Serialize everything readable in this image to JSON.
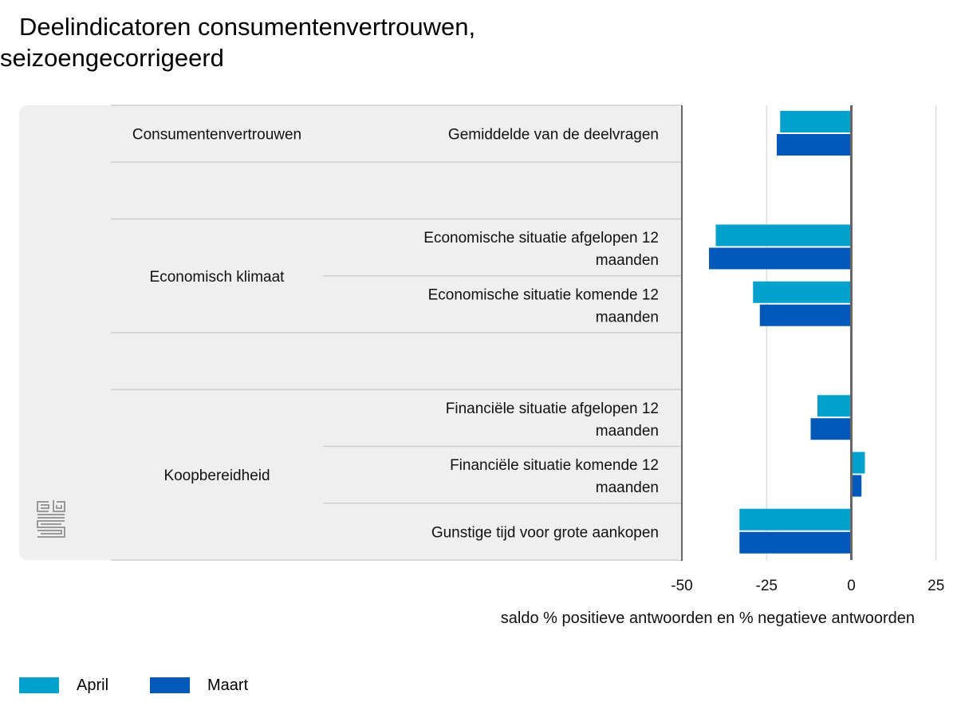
{
  "title": {
    "line1": "Deelindicatoren consumentenvertrouwen,",
    "line2": "seizoengecorrigeerd"
  },
  "logo_icon": "cbs-logo-icon",
  "colors": {
    "april": "#00a1cd",
    "maart": "#0058b8",
    "panel": "#efefef",
    "grid": "#cfcfcf",
    "zero": "#666666"
  },
  "chart_data": {
    "type": "bar",
    "orientation": "horizontal",
    "title": "Deelindicatoren consumentenvertrouwen, seizoengecorrigeerd",
    "xlabel": "saldo % positieve antwoorden en % negatieve antwoorden",
    "xlim": [
      -50,
      30
    ],
    "xticks": [
      -50,
      -25,
      0,
      25
    ],
    "groups": [
      {
        "name": "Consumentenvertrouwen",
        "items": [
          {
            "label": "Gemiddelde van de deelvragen",
            "april": -21,
            "maart": -22
          }
        ]
      },
      {
        "name": "Economisch klimaat",
        "items": [
          {
            "label": "Economische situatie afgelopen 12 maanden",
            "april": -40,
            "maart": -42
          },
          {
            "label": "Economische situatie komende 12 maanden",
            "april": -29,
            "maart": -27
          }
        ]
      },
      {
        "name": "Koopbereidheid",
        "items": [
          {
            "label": "Financiële situatie afgelopen 12 maanden",
            "april": -10,
            "maart": -12
          },
          {
            "label": "Financiële situatie komende 12 maanden",
            "april": 4,
            "maart": 3
          },
          {
            "label": "Gunstige tijd voor grote aankopen",
            "april": -33,
            "maart": -33
          }
        ]
      }
    ],
    "series": [
      {
        "name": "April",
        "key": "april"
      },
      {
        "name": "Maart",
        "key": "maart"
      }
    ]
  }
}
